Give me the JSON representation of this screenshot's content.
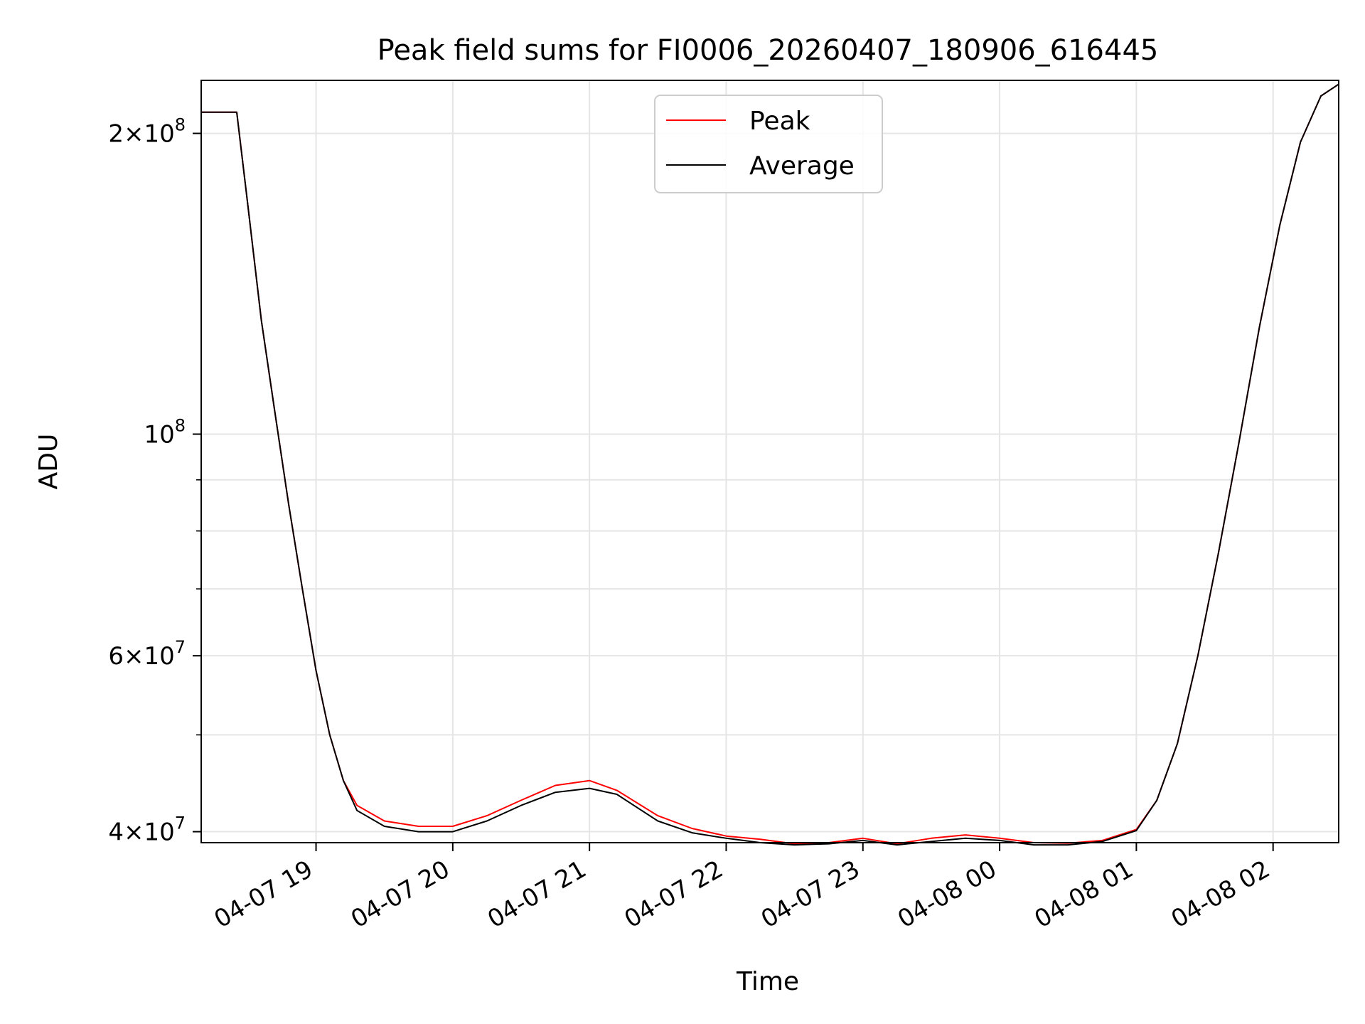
{
  "chart_data": {
    "type": "line",
    "title": "Peak field sums for FI0006_20260407_180906_616445",
    "xlabel": "Time",
    "ylabel": "ADU",
    "yscale": "log",
    "xlim": [
      -0.84,
      7.48
    ],
    "ylim": [
      39000000,
      226000000
    ],
    "grid": true,
    "legend_position": "top-center",
    "x_ticks": [
      {
        "value": 0,
        "label": "04-07 19"
      },
      {
        "value": 1,
        "label": "04-07 20"
      },
      {
        "value": 2,
        "label": "04-07 21"
      },
      {
        "value": 3,
        "label": "04-07 22"
      },
      {
        "value": 4,
        "label": "04-07 23"
      },
      {
        "value": 5,
        "label": "04-08 00"
      },
      {
        "value": 6,
        "label": "04-08 01"
      },
      {
        "value": 7,
        "label": "04-08 02"
      }
    ],
    "y_major_ticks": [
      {
        "value": 40000000,
        "mantissa": "4",
        "exponent": "7"
      },
      {
        "value": 60000000,
        "mantissa": "6",
        "exponent": "7"
      },
      {
        "value": 100000000,
        "mantissa": "",
        "exponent": "8"
      },
      {
        "value": 200000000,
        "mantissa": "2",
        "exponent": "8"
      }
    ],
    "y_minor_ticks": [
      50000000,
      70000000,
      80000000,
      90000000
    ],
    "x_unit_note": "hours since 2026-04-07 19:00",
    "series": [
      {
        "name": "Peak",
        "color": "#ff0000",
        "x": [
          -0.84,
          -0.62,
          -0.58,
          -0.5,
          -0.4,
          -0.3,
          -0.2,
          -0.1,
          0.0,
          0.1,
          0.2,
          0.3,
          0.5,
          0.75,
          1.0,
          1.25,
          1.5,
          1.75,
          2.0,
          2.2,
          2.5,
          2.75,
          3.0,
          3.25,
          3.5,
          3.75,
          4.0,
          4.25,
          4.5,
          4.75,
          5.0,
          5.25,
          5.5,
          5.75,
          6.0,
          6.15,
          6.3,
          6.45,
          6.6,
          6.75,
          6.9,
          7.05,
          7.2,
          7.35,
          7.48
        ],
        "values": [
          210000000,
          210000000,
          210000000,
          170000000,
          130000000,
          105000000,
          85000000,
          70000000,
          58000000,
          50000000,
          45000000,
          42500000,
          41000000,
          40500000,
          40500000,
          41500000,
          43000000,
          44500000,
          45000000,
          44000000,
          41500000,
          40300000,
          39600000,
          39300000,
          38900000,
          39000000,
          39400000,
          38900000,
          39400000,
          39700000,
          39400000,
          39000000,
          38950000,
          39200000,
          40200000,
          43000000,
          49000000,
          60000000,
          76000000,
          98000000,
          128000000,
          162000000,
          196000000,
          218000000,
          224000000
        ]
      },
      {
        "name": "Average",
        "color": "#000000",
        "x": [
          -0.84,
          -0.62,
          -0.58,
          -0.5,
          -0.4,
          -0.3,
          -0.2,
          -0.1,
          0.0,
          0.1,
          0.2,
          0.3,
          0.5,
          0.75,
          1.0,
          1.25,
          1.5,
          1.75,
          2.0,
          2.2,
          2.5,
          2.75,
          3.0,
          3.25,
          3.5,
          3.75,
          4.0,
          4.25,
          4.5,
          4.75,
          5.0,
          5.25,
          5.5,
          5.75,
          6.0,
          6.15,
          6.3,
          6.45,
          6.6,
          6.75,
          6.9,
          7.05,
          7.2,
          7.35,
          7.48
        ],
        "values": [
          210000000,
          210000000,
          210000000,
          170000000,
          130000000,
          105000000,
          85000000,
          70000000,
          58000000,
          50000000,
          45000000,
          42000000,
          40500000,
          40000000,
          40000000,
          41000000,
          42500000,
          43800000,
          44200000,
          43600000,
          41000000,
          39900000,
          39400000,
          39000000,
          38800000,
          38900000,
          39200000,
          38800000,
          39100000,
          39400000,
          39200000,
          38800000,
          38800000,
          39100000,
          40100000,
          43000000,
          49000000,
          60000000,
          76000000,
          98000000,
          128000000,
          162000000,
          196000000,
          218000000,
          224000000
        ]
      }
    ]
  }
}
